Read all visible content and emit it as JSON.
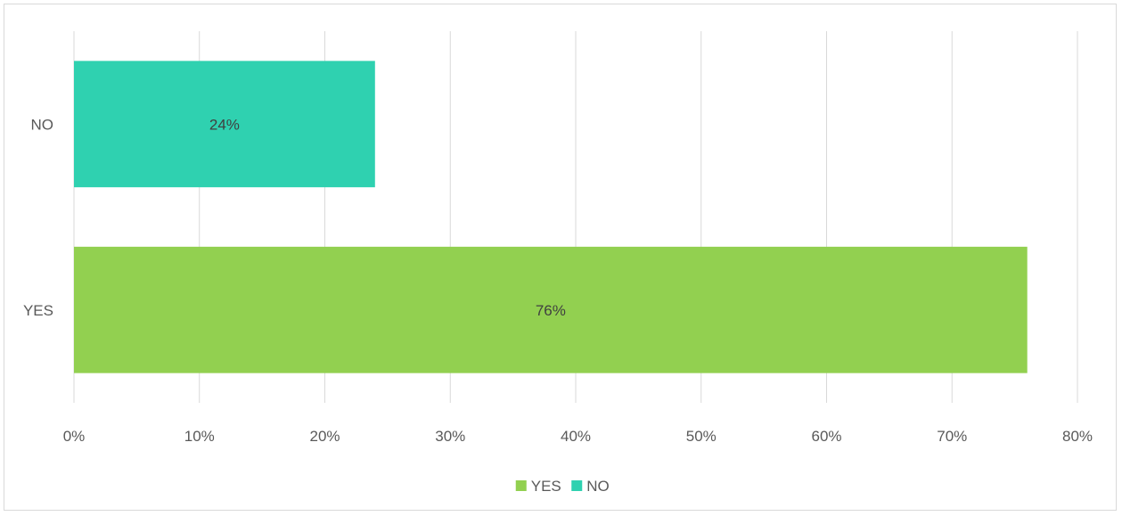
{
  "chart_data": {
    "type": "bar",
    "orientation": "horizontal",
    "categories": [
      "NO",
      "YES"
    ],
    "series": [
      {
        "name": "YES",
        "category": "YES",
        "value": 76,
        "label": "76%",
        "color": "#92d050"
      },
      {
        "name": "NO",
        "category": "NO",
        "value": 24,
        "label": "24%",
        "color": "#2fd1b0"
      }
    ],
    "xlim": [
      0,
      80
    ],
    "x_ticks": [
      0,
      10,
      20,
      30,
      40,
      50,
      60,
      70,
      80
    ],
    "x_tick_labels": [
      "0%",
      "10%",
      "20%",
      "30%",
      "40%",
      "50%",
      "60%",
      "70%",
      "80%"
    ],
    "grid": "vertical",
    "legend": {
      "position": "bottom",
      "items": [
        {
          "label": "YES",
          "color": "#92d050"
        },
        {
          "label": "NO",
          "color": "#2fd1b0"
        }
      ]
    },
    "title": "",
    "xlabel": "",
    "ylabel": ""
  }
}
